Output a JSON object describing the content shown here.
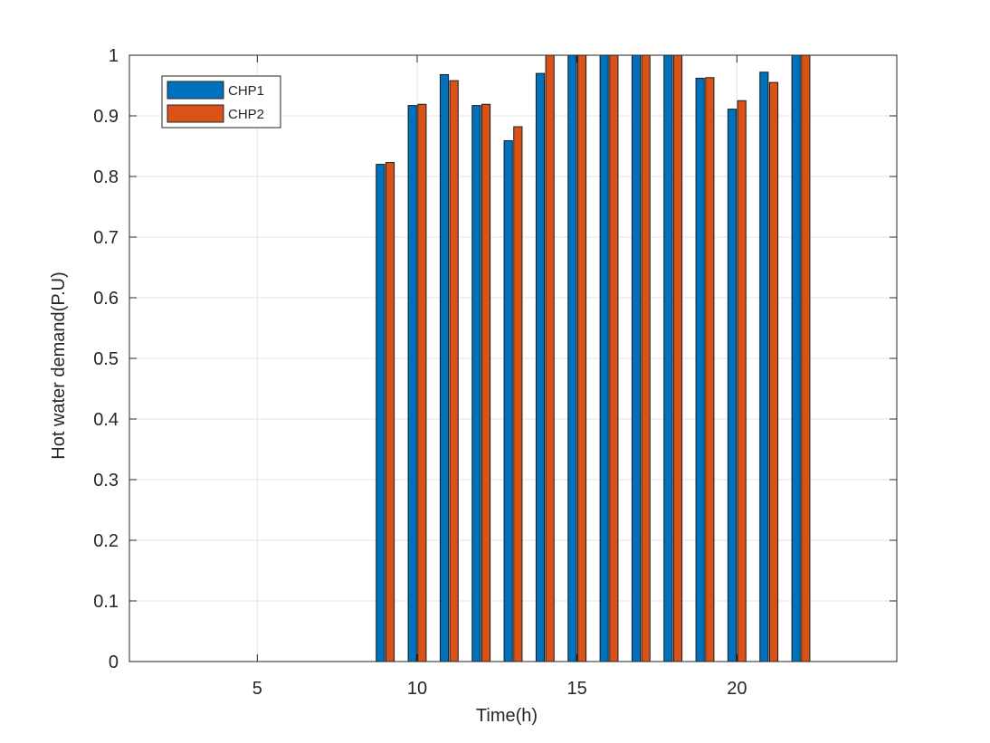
{
  "chart_data": {
    "type": "bar",
    "xlabel": "Time(h)",
    "ylabel": "Hot water demand(P.U)",
    "xlim": [
      1,
      25
    ],
    "ylim": [
      0,
      1
    ],
    "x": [
      9,
      10,
      11,
      12,
      13,
      14,
      15,
      16,
      17,
      18,
      19,
      20,
      21,
      22
    ],
    "xticks": [
      5,
      10,
      15,
      20
    ],
    "xtick_labels": [
      "5",
      "10",
      "15",
      "20"
    ],
    "yticks": [
      0,
      0.1,
      0.2,
      0.3,
      0.4,
      0.5,
      0.6,
      0.7,
      0.8,
      0.9,
      1
    ],
    "ytick_labels": [
      "0",
      "0.1",
      "0.2",
      "0.3",
      "0.4",
      "0.5",
      "0.6",
      "0.7",
      "0.8",
      "0.9",
      "1"
    ],
    "grid": true,
    "legend_position": "top-left",
    "series": [
      {
        "name": "CHP1",
        "color": "#0072BD",
        "values": [
          0.82,
          0.917,
          0.968,
          0.917,
          0.859,
          0.97,
          1.0,
          1.0,
          1.0,
          1.0,
          0.962,
          0.911,
          0.972,
          1.0
        ]
      },
      {
        "name": "CHP2",
        "color": "#D95319",
        "values": [
          0.823,
          0.919,
          0.958,
          0.919,
          0.882,
          1.0,
          1.0,
          1.0,
          1.0,
          1.0,
          0.963,
          0.925,
          0.955,
          1.0
        ]
      }
    ]
  }
}
